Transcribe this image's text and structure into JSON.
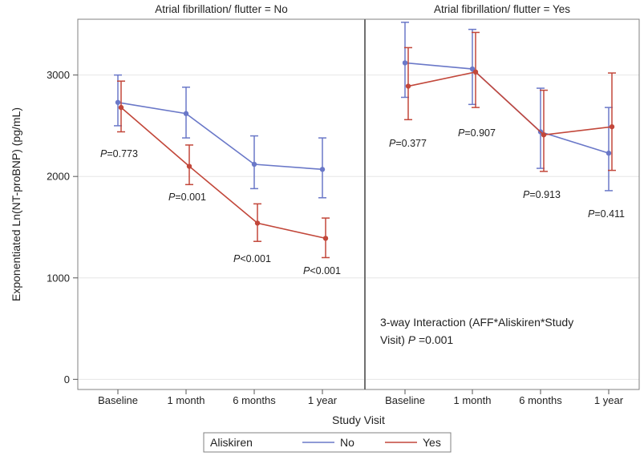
{
  "chart_data": {
    "type": "line",
    "ylabel": "Exponentiated Ln(NT-proBNP) (pg/mL)",
    "xlabel": "Study Visit",
    "categories": [
      "Baseline",
      "1 month",
      "6 months",
      "1 year"
    ],
    "ylim": [
      -100,
      3550
    ],
    "yticks": [
      0,
      1000,
      2000,
      3000
    ],
    "grid": true,
    "legend": {
      "title": "Aliskiren",
      "placement": "bottom",
      "entries": [
        "No",
        "Yes"
      ]
    },
    "colors": {
      "No": "#6a78c8",
      "Yes": "#c2473a",
      "grid": "#e6e6e6",
      "frame": "#808080"
    },
    "panels": [
      {
        "title": "Atrial fibrillation/ flutter = No",
        "series": [
          {
            "name": "No",
            "values": [
              2730,
              2620,
              2120,
              2070
            ],
            "lower": [
              2500,
              2380,
              1880,
              1790
            ],
            "upper": [
              3000,
              2880,
              2400,
              2380
            ]
          },
          {
            "name": "Yes",
            "values": [
              2680,
              2100,
              1540,
              1390
            ],
            "lower": [
              2440,
              1920,
              1360,
              1200
            ],
            "upper": [
              2940,
              2310,
              1730,
              1590
            ]
          }
        ],
        "pvalues": [
          "=0.773",
          "=0.001",
          "<0.001",
          "<0.001"
        ],
        "annotation": ""
      },
      {
        "title": "Atrial fibrillation/ flutter = Yes",
        "series": [
          {
            "name": "No",
            "values": [
              3120,
              3060,
              2440,
              2230
            ],
            "lower": [
              2780,
              2710,
              2080,
              1860
            ],
            "upper": [
              3520,
              3450,
              2870,
              2680
            ]
          },
          {
            "name": "Yes",
            "values": [
              2890,
              3030,
              2410,
              2490
            ],
            "lower": [
              2560,
              2680,
              2050,
              2060
            ],
            "upper": [
              3270,
              3420,
              2850,
              3020
            ]
          }
        ],
        "pvalues": [
          "=0.377",
          "=0.907",
          "=0.913",
          "=0.411"
        ],
        "annotation": {
          "line1": "3-way Interaction (AFF*Aliskiren*Study",
          "line2_prefix": "Visit) ",
          "p_symbol": "P",
          "line2_value": " =0.001"
        }
      }
    ],
    "p_symbol": "P"
  }
}
